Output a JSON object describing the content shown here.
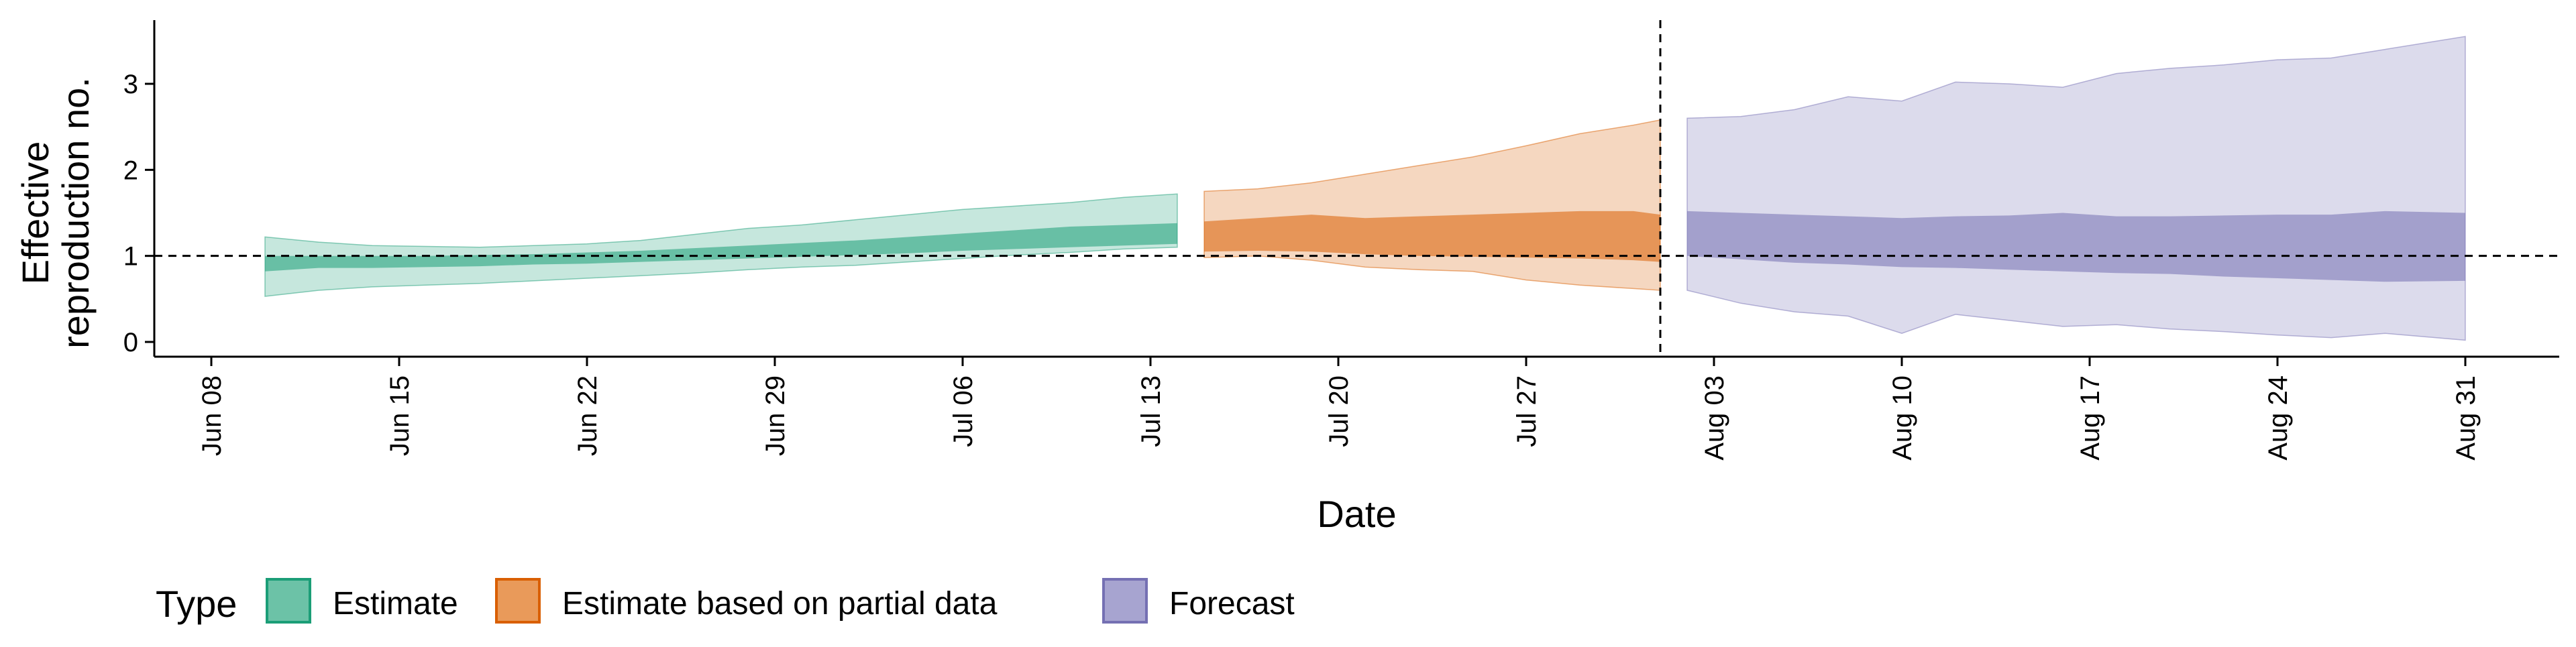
{
  "chart_data": {
    "type": "area",
    "xlabel": "Date",
    "ylabel_lines": [
      "Effective",
      "reproduction no."
    ],
    "x_ticks": [
      {
        "date": "2020-06-08",
        "label": "Jun 08"
      },
      {
        "date": "2020-06-15",
        "label": "Jun 15"
      },
      {
        "date": "2020-06-22",
        "label": "Jun 22"
      },
      {
        "date": "2020-06-29",
        "label": "Jun 29"
      },
      {
        "date": "2020-07-06",
        "label": "Jul 06"
      },
      {
        "date": "2020-07-13",
        "label": "Jul 13"
      },
      {
        "date": "2020-07-20",
        "label": "Jul 20"
      },
      {
        "date": "2020-07-27",
        "label": "Jul 27"
      },
      {
        "date": "2020-08-03",
        "label": "Aug 03"
      },
      {
        "date": "2020-08-10",
        "label": "Aug 10"
      },
      {
        "date": "2020-08-17",
        "label": "Aug 17"
      },
      {
        "date": "2020-08-24",
        "label": "Aug 24"
      },
      {
        "date": "2020-08-31",
        "label": "Aug 31"
      }
    ],
    "y_ticks": [
      0,
      1,
      2,
      3
    ],
    "xlim": [
      "2020-06-08",
      "2020-08-31"
    ],
    "ylim": [
      0,
      3.6
    ],
    "reference_line_y": 1,
    "forecast_start_date": "2020-08-01",
    "grid": false,
    "legend": {
      "position": "bottom-left",
      "title": "Type",
      "entries": [
        {
          "label": "Estimate",
          "color": "#1b9e77",
          "fill": "#6cc2a7"
        },
        {
          "label": "Estimate based on partial data",
          "color": "#d95f02",
          "fill": "#e99a5a"
        },
        {
          "label": "Forecast",
          "color": "#7570b3",
          "fill": "#a7a4d0"
        }
      ]
    },
    "series": [
      {
        "name": "Estimate",
        "color": "#1b9e77",
        "x": [
          "2020-06-10",
          "2020-06-12",
          "2020-06-14",
          "2020-06-16",
          "2020-06-18",
          "2020-06-20",
          "2020-06-22",
          "2020-06-24",
          "2020-06-26",
          "2020-06-28",
          "2020-06-30",
          "2020-07-02",
          "2020-07-04",
          "2020-07-06",
          "2020-07-08",
          "2020-07-10",
          "2020-07-12",
          "2020-07-14"
        ],
        "median": [
          0.92,
          0.94,
          0.93,
          0.95,
          0.95,
          0.96,
          0.97,
          0.98,
          1.0,
          1.02,
          1.04,
          1.06,
          1.1,
          1.14,
          1.18,
          1.22,
          1.25,
          1.27
        ],
        "lower_50": [
          0.82,
          0.86,
          0.86,
          0.87,
          0.88,
          0.9,
          0.91,
          0.93,
          0.95,
          0.97,
          0.99,
          1.01,
          1.03,
          1.06,
          1.08,
          1.1,
          1.12,
          1.14
        ],
        "upper_50": [
          1.0,
          1.0,
          1.0,
          1.0,
          1.01,
          1.02,
          1.04,
          1.06,
          1.09,
          1.12,
          1.15,
          1.18,
          1.22,
          1.26,
          1.3,
          1.34,
          1.36,
          1.38
        ],
        "lower_90": [
          0.53,
          0.6,
          0.64,
          0.66,
          0.68,
          0.71,
          0.74,
          0.77,
          0.8,
          0.84,
          0.87,
          0.89,
          0.93,
          0.97,
          1.01,
          1.04,
          1.08,
          1.1
        ],
        "upper_90": [
          1.22,
          1.16,
          1.12,
          1.11,
          1.1,
          1.12,
          1.14,
          1.18,
          1.25,
          1.32,
          1.36,
          1.42,
          1.48,
          1.54,
          1.58,
          1.62,
          1.68,
          1.72
        ]
      },
      {
        "name": "Estimate based on partial data",
        "color": "#d95f02",
        "x": [
          "2020-07-15",
          "2020-07-17",
          "2020-07-19",
          "2020-07-21",
          "2020-07-23",
          "2020-07-25",
          "2020-07-27",
          "2020-07-29",
          "2020-07-31",
          "2020-08-01"
        ],
        "median": [
          1.2,
          1.22,
          1.24,
          1.22,
          1.23,
          1.24,
          1.25,
          1.25,
          1.24,
          1.22
        ],
        "lower_50": [
          1.05,
          1.06,
          1.05,
          1.02,
          1.0,
          0.99,
          0.98,
          0.97,
          0.95,
          0.93
        ],
        "upper_50": [
          1.4,
          1.44,
          1.48,
          1.44,
          1.46,
          1.48,
          1.5,
          1.52,
          1.52,
          1.48
        ],
        "lower_90": [
          0.98,
          1.0,
          0.95,
          0.87,
          0.84,
          0.82,
          0.72,
          0.66,
          0.62,
          0.6
        ],
        "upper_90": [
          1.75,
          1.78,
          1.85,
          1.95,
          2.05,
          2.15,
          2.28,
          2.42,
          2.52,
          2.58
        ]
      },
      {
        "name": "Forecast",
        "color": "#7570b3",
        "x": [
          "2020-08-02",
          "2020-08-04",
          "2020-08-06",
          "2020-08-08",
          "2020-08-10",
          "2020-08-12",
          "2020-08-14",
          "2020-08-16",
          "2020-08-18",
          "2020-08-20",
          "2020-08-22",
          "2020-08-24",
          "2020-08-26",
          "2020-08-28",
          "2020-08-31"
        ],
        "median": [
          1.22,
          1.2,
          1.19,
          1.17,
          1.15,
          1.17,
          1.16,
          1.18,
          1.16,
          1.16,
          1.15,
          1.14,
          1.14,
          1.16,
          1.12
        ],
        "lower_50": [
          1.0,
          0.96,
          0.92,
          0.9,
          0.87,
          0.86,
          0.84,
          0.82,
          0.8,
          0.79,
          0.76,
          0.74,
          0.72,
          0.7,
          0.71
        ],
        "upper_50": [
          1.52,
          1.5,
          1.48,
          1.46,
          1.44,
          1.46,
          1.47,
          1.5,
          1.46,
          1.46,
          1.47,
          1.48,
          1.48,
          1.52,
          1.5
        ],
        "lower_90": [
          0.6,
          0.45,
          0.35,
          0.3,
          0.1,
          0.32,
          0.25,
          0.18,
          0.2,
          0.15,
          0.12,
          0.08,
          0.05,
          0.1,
          0.02
        ],
        "upper_90": [
          2.6,
          2.62,
          2.7,
          2.85,
          2.8,
          3.02,
          3.0,
          2.96,
          3.12,
          3.18,
          3.22,
          3.28,
          3.3,
          3.4,
          3.55
        ]
      }
    ]
  }
}
